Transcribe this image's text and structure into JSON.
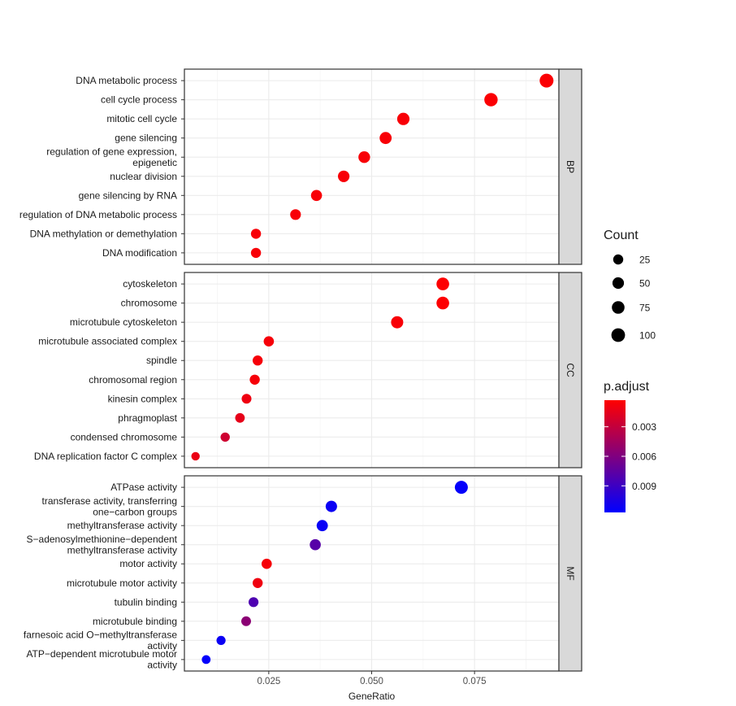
{
  "chart_data": {
    "type": "scatter",
    "xlabel": "GeneRatio",
    "xlim": [
      0.0045,
      0.0955
    ],
    "xticks": [
      {
        "value": 0.025,
        "label": "0.025"
      },
      {
        "value": 0.05,
        "label": "0.050"
      },
      {
        "value": 0.075,
        "label": "0.075"
      }
    ],
    "grid": true,
    "legend_position": "right",
    "panels": [
      {
        "label": "BP",
        "terms": [
          {
            "lines": [
              "DNA metabolic process"
            ],
            "gene_ratio": 0.0925,
            "count": 104,
            "p_adjust": 0.0005
          },
          {
            "lines": [
              "cell cycle process"
            ],
            "gene_ratio": 0.079,
            "count": 90,
            "p_adjust": 0.0005
          },
          {
            "lines": [
              "mitotic cell cycle"
            ],
            "gene_ratio": 0.0577,
            "count": 66,
            "p_adjust": 0.0006
          },
          {
            "lines": [
              "gene silencing"
            ],
            "gene_ratio": 0.0534,
            "count": 61,
            "p_adjust": 0.0006
          },
          {
            "lines": [
              "regulation of gene expression,",
              "epigenetic"
            ],
            "gene_ratio": 0.0482,
            "count": 55,
            "p_adjust": 0.0006
          },
          {
            "lines": [
              "nuclear division"
            ],
            "gene_ratio": 0.0432,
            "count": 50,
            "p_adjust": 0.0006
          },
          {
            "lines": [
              "gene silencing by RNA"
            ],
            "gene_ratio": 0.0366,
            "count": 42,
            "p_adjust": 0.0006
          },
          {
            "lines": [
              "regulation of DNA metabolic process"
            ],
            "gene_ratio": 0.0315,
            "count": 36,
            "p_adjust": 0.0006
          },
          {
            "lines": [
              "DNA methylation or demethylation"
            ],
            "gene_ratio": 0.0219,
            "count": 25,
            "p_adjust": 0.0006
          },
          {
            "lines": [
              "DNA modification"
            ],
            "gene_ratio": 0.0219,
            "count": 25,
            "p_adjust": 0.0006
          }
        ]
      },
      {
        "label": "CC",
        "terms": [
          {
            "lines": [
              "cytoskeleton"
            ],
            "gene_ratio": 0.0673,
            "count": 77,
            "p_adjust": 0.0004
          },
          {
            "lines": [
              "chromosome"
            ],
            "gene_ratio": 0.0673,
            "count": 77,
            "p_adjust": 0.0004
          },
          {
            "lines": [
              "microtubule cytoskeleton"
            ],
            "gene_ratio": 0.0562,
            "count": 64,
            "p_adjust": 0.0006
          },
          {
            "lines": [
              "microtubule associated complex"
            ],
            "gene_ratio": 0.025,
            "count": 29,
            "p_adjust": 0.0007
          },
          {
            "lines": [
              "spindle"
            ],
            "gene_ratio": 0.0223,
            "count": 26,
            "p_adjust": 0.0007
          },
          {
            "lines": [
              "chromosomal region"
            ],
            "gene_ratio": 0.0216,
            "count": 25,
            "p_adjust": 0.0007
          },
          {
            "lines": [
              "kinesin complex"
            ],
            "gene_ratio": 0.0196,
            "count": 22,
            "p_adjust": 0.001
          },
          {
            "lines": [
              "phragmoplast"
            ],
            "gene_ratio": 0.018,
            "count": 20,
            "p_adjust": 0.0014
          },
          {
            "lines": [
              "condensed chromosome"
            ],
            "gene_ratio": 0.0144,
            "count": 16,
            "p_adjust": 0.0025
          },
          {
            "lines": [
              "DNA replication factor C complex"
            ],
            "gene_ratio": 0.0072,
            "count": 8,
            "p_adjust": 0.0012
          }
        ]
      },
      {
        "label": "MF",
        "terms": [
          {
            "lines": [
              "ATPase activity"
            ],
            "gene_ratio": 0.0718,
            "count": 82,
            "p_adjust": 0.0115
          },
          {
            "lines": [
              "transferase activity, transferring",
              "one−carbon groups"
            ],
            "gene_ratio": 0.0402,
            "count": 46,
            "p_adjust": 0.0112
          },
          {
            "lines": [
              "methyltransferase activity"
            ],
            "gene_ratio": 0.038,
            "count": 43,
            "p_adjust": 0.0113
          },
          {
            "lines": [
              "S−adenosylmethionine−dependent",
              "methyltransferase activity"
            ],
            "gene_ratio": 0.0363,
            "count": 41,
            "p_adjust": 0.0078
          },
          {
            "lines": [
              "motor activity"
            ],
            "gene_ratio": 0.0245,
            "count": 28,
            "p_adjust": 0.0007
          },
          {
            "lines": [
              "microtubule motor activity"
            ],
            "gene_ratio": 0.0223,
            "count": 25,
            "p_adjust": 0.001
          },
          {
            "lines": [
              "tubulin binding"
            ],
            "gene_ratio": 0.0213,
            "count": 24,
            "p_adjust": 0.0082
          },
          {
            "lines": [
              "microtubule binding"
            ],
            "gene_ratio": 0.0195,
            "count": 22,
            "p_adjust": 0.0055
          },
          {
            "lines": [
              "farnesoic acid O−methyltransferase",
              "activity"
            ],
            "gene_ratio": 0.0134,
            "count": 15,
            "p_adjust": 0.0112
          },
          {
            "lines": [
              "ATP−dependent microtubule motor",
              "activity"
            ],
            "gene_ratio": 0.0098,
            "count": 11,
            "p_adjust": 0.0115
          }
        ]
      }
    ],
    "size_legend": {
      "title": "Count",
      "breaks": [
        25,
        50,
        75,
        100
      ],
      "labels": [
        "25",
        "50",
        "75",
        "100"
      ]
    },
    "color_legend": {
      "title": "p.adjust",
      "range": [
        0.0003,
        0.0117
      ],
      "breaks": [
        0.003,
        0.006,
        0.009
      ],
      "labels": [
        "0.003",
        "0.006",
        "0.009"
      ],
      "low_color": "#ff0000",
      "high_color": "#0000ff"
    },
    "colors": {
      "panel_border": "#333333",
      "grid_major": "#ebebeb",
      "grid_minor": "#f5f5f5",
      "strip_fill": "#d9d9d9"
    }
  }
}
